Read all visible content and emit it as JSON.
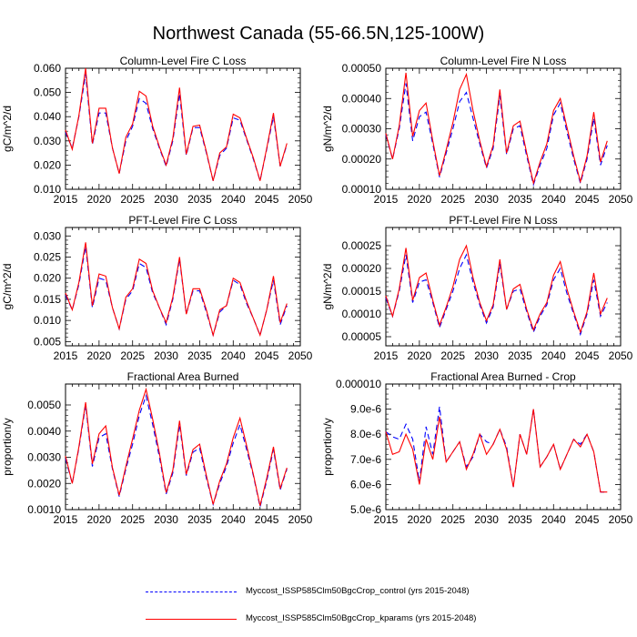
{
  "title": "Northwest Canada (55-66.5N,125-100W)",
  "colors": {
    "control": "#0000ff",
    "kparams": "#ff0000",
    "axis": "#000000"
  },
  "legend": [
    {
      "key": "control",
      "label": "Myccost_ISSP585Clm50BgcCrop_control (yrs 2015-2048)",
      "style": "dashed"
    },
    {
      "key": "kparams",
      "label": "Myccost_ISSP585Clm50BgcCrop_kparams (yrs 2015-2048)",
      "style": "solid"
    }
  ],
  "chart_data": [
    {
      "type": "line",
      "title": "Column-Level Fire C Loss",
      "ylabel": "gC/m^2/d",
      "xlim": [
        2015,
        2050
      ],
      "xticks": [
        "2015",
        "2020",
        "2025",
        "2030",
        "2035",
        "2040",
        "2045",
        "2050"
      ],
      "ylim": [
        0.01,
        0.06
      ],
      "yticks": [
        "0.010",
        "0.020",
        "0.030",
        "0.040",
        "0.050",
        "0.060"
      ],
      "x": [
        2015,
        2016,
        2017,
        2018,
        2019,
        2020,
        2021,
        2022,
        2023,
        2024,
        2025,
        2026,
        2027,
        2028,
        2029,
        2030,
        2031,
        2032,
        2033,
        2034,
        2035,
        2036,
        2037,
        2038,
        2039,
        2040,
        2041,
        2042,
        2043,
        2044,
        2045,
        2046,
        2047,
        2048
      ],
      "series": [
        {
          "name": "control",
          "values": [
            0.0335,
            0.027,
            0.04,
            0.0575,
            0.0285,
            0.0415,
            0.0415,
            0.027,
            0.0165,
            0.03,
            0.036,
            0.0475,
            0.0455,
            0.035,
            0.027,
            0.0195,
            0.03,
            0.0495,
            0.024,
            0.0355,
            0.0355,
            0.025,
            0.0135,
            0.024,
            0.027,
            0.0395,
            0.0385,
            0.0305,
            0.0225,
            0.0135,
            0.0265,
            0.04,
            0.0195,
            0.0285
          ]
        },
        {
          "name": "kparams",
          "values": [
            0.0345,
            0.0265,
            0.0405,
            0.06,
            0.029,
            0.0435,
            0.0435,
            0.027,
            0.0165,
            0.0315,
            0.037,
            0.0505,
            0.0485,
            0.036,
            0.0275,
            0.02,
            0.031,
            0.052,
            0.0245,
            0.036,
            0.0365,
            0.0255,
            0.0135,
            0.025,
            0.0275,
            0.041,
            0.0395,
            0.031,
            0.023,
            0.0135,
            0.027,
            0.0415,
            0.0195,
            0.029
          ]
        }
      ]
    },
    {
      "type": "line",
      "title": "Column-Level Fire N Loss",
      "ylabel": "gN/m^2/d",
      "xlim": [
        2015,
        2050
      ],
      "xticks": [
        "2015",
        "2020",
        "2025",
        "2030",
        "2035",
        "2040",
        "2045",
        "2050"
      ],
      "ylim": [
        0.0001,
        0.0005
      ],
      "yticks": [
        "0.00010",
        "0.00020",
        "0.00030",
        "0.00040",
        "0.00050"
      ],
      "x": [
        2015,
        2016,
        2017,
        2018,
        2019,
        2020,
        2021,
        2022,
        2023,
        2024,
        2025,
        2026,
        2027,
        2028,
        2029,
        2030,
        2031,
        2032,
        2033,
        2034,
        2035,
        2036,
        2037,
        2038,
        2039,
        2040,
        2041,
        2042,
        2043,
        2044,
        2045,
        2046,
        2047,
        2048
      ],
      "series": [
        {
          "name": "control",
          "values": [
            0.00028,
            0.0002,
            0.0003,
            0.00045,
            0.00026,
            0.00034,
            0.000355,
            0.00025,
            0.00014,
            0.00022,
            0.0003,
            0.00039,
            0.00042,
            0.000335,
            0.00025,
            0.00017,
            0.000235,
            0.00041,
            0.000215,
            0.0003,
            0.00031,
            0.00021,
            0.000115,
            0.00018,
            0.000235,
            0.000345,
            0.000385,
            0.00029,
            0.0002,
            0.00012,
            0.0002,
            0.000335,
            0.00018,
            0.000245
          ]
        },
        {
          "name": "kparams",
          "values": [
            0.000285,
            0.0002,
            0.00031,
            0.000485,
            0.000275,
            0.00036,
            0.000385,
            0.00026,
            0.000145,
            0.00023,
            0.00032,
            0.00043,
            0.00048,
            0.00036,
            0.00026,
            0.000175,
            0.000245,
            0.00043,
            0.00022,
            0.00031,
            0.000325,
            0.00022,
            0.00012,
            0.00019,
            0.00025,
            0.00036,
            0.0004,
            0.000305,
            0.00021,
            0.000125,
            0.00021,
            0.000355,
            0.00019,
            0.00026
          ]
        }
      ]
    },
    {
      "type": "line",
      "title": "PFT-Level Fire C Loss",
      "ylabel": "gC/m^2/d",
      "xlim": [
        2015,
        2050
      ],
      "xticks": [
        "2015",
        "2020",
        "2025",
        "2030",
        "2035",
        "2040",
        "2045",
        "2050"
      ],
      "ylim": [
        0.004,
        0.032
      ],
      "yticks": [
        "0.005",
        "0.010",
        "0.015",
        "0.020",
        "0.025",
        "0.030"
      ],
      "x": [
        2015,
        2016,
        2017,
        2018,
        2019,
        2020,
        2021,
        2022,
        2023,
        2024,
        2025,
        2026,
        2027,
        2028,
        2029,
        2030,
        2031,
        2032,
        2033,
        2034,
        2035,
        2036,
        2037,
        2038,
        2039,
        2040,
        2041,
        2042,
        2043,
        2044,
        2045,
        2046,
        2047,
        2048
      ],
      "series": [
        {
          "name": "control",
          "values": [
            0.016,
            0.0125,
            0.0185,
            0.0275,
            0.013,
            0.02,
            0.0195,
            0.013,
            0.008,
            0.015,
            0.017,
            0.0235,
            0.0225,
            0.0165,
            0.013,
            0.009,
            0.015,
            0.0245,
            0.0115,
            0.017,
            0.017,
            0.012,
            0.0065,
            0.012,
            0.0135,
            0.0195,
            0.0185,
            0.014,
            0.0105,
            0.0065,
            0.0125,
            0.0195,
            0.009,
            0.0135
          ]
        },
        {
          "name": "kparams",
          "values": [
            0.0165,
            0.0125,
            0.019,
            0.0285,
            0.0135,
            0.021,
            0.0205,
            0.013,
            0.008,
            0.0155,
            0.0175,
            0.0245,
            0.0235,
            0.017,
            0.013,
            0.0095,
            0.0155,
            0.025,
            0.0115,
            0.0175,
            0.0175,
            0.0125,
            0.0065,
            0.0125,
            0.0135,
            0.02,
            0.019,
            0.0145,
            0.0105,
            0.0065,
            0.0125,
            0.0205,
            0.0095,
            0.014
          ]
        }
      ]
    },
    {
      "type": "line",
      "title": "PFT-Level Fire N Loss",
      "ylabel": "gN/m^2/d",
      "xlim": [
        2015,
        2050
      ],
      "xticks": [
        "2015",
        "2020",
        "2025",
        "2030",
        "2035",
        "2040",
        "2045",
        "2050"
      ],
      "ylim": [
        3e-05,
        0.00029
      ],
      "yticks": [
        "0.00005",
        "0.00010",
        "0.00015",
        "0.00020",
        "0.00025"
      ],
      "x": [
        2015,
        2016,
        2017,
        2018,
        2019,
        2020,
        2021,
        2022,
        2023,
        2024,
        2025,
        2026,
        2027,
        2028,
        2029,
        2030,
        2031,
        2032,
        2033,
        2034,
        2035,
        2036,
        2037,
        2038,
        2039,
        2040,
        2041,
        2042,
        2043,
        2044,
        2045,
        2046,
        2047,
        2048
      ],
      "series": [
        {
          "name": "control",
          "values": [
            0.000135,
            9.5e-05,
            0.00015,
            0.00023,
            0.000125,
            0.00017,
            0.000175,
            0.000125,
            7e-05,
            0.00011,
            0.00015,
            0.0002,
            0.00023,
            0.00017,
            0.00012,
            8e-05,
            0.000115,
            0.00021,
            0.00011,
            0.00015,
            0.000155,
            0.000105,
            6e-05,
            9.5e-05,
            0.00012,
            0.000175,
            0.0002,
            0.000145,
            0.0001,
            5.5e-05,
            0.0001,
            0.000175,
            9.5e-05,
            0.000125
          ]
        },
        {
          "name": "kparams",
          "values": [
            0.00014,
            9.5e-05,
            0.000155,
            0.000245,
            0.00013,
            0.00018,
            0.00019,
            0.00013,
            7.5e-05,
            0.000115,
            0.00016,
            0.00022,
            0.00025,
            0.00018,
            0.000125,
            8.5e-05,
            0.00012,
            0.00022,
            0.00011,
            0.000155,
            0.000165,
            0.00011,
            6.5e-05,
            0.0001,
            0.000125,
            0.000185,
            0.000215,
            0.000155,
            0.000105,
            6e-05,
            0.000105,
            0.00019,
            0.0001,
            0.000135
          ]
        }
      ]
    },
    {
      "type": "line",
      "title": "Fractional Area Burned",
      "ylabel": "proportion/y",
      "xlim": [
        2015,
        2050
      ],
      "xticks": [
        "2015",
        "2020",
        "2025",
        "2030",
        "2035",
        "2040",
        "2045",
        "2050"
      ],
      "ylim": [
        0.001,
        0.0058
      ],
      "yticks": [
        "0.0010",
        "0.0020",
        "0.0030",
        "0.0040",
        "0.0050"
      ],
      "x": [
        2015,
        2016,
        2017,
        2018,
        2019,
        2020,
        2021,
        2022,
        2023,
        2024,
        2025,
        2026,
        2027,
        2028,
        2029,
        2030,
        2031,
        2032,
        2033,
        2034,
        2035,
        2036,
        2037,
        2038,
        2039,
        2040,
        2041,
        2042,
        2043,
        2044,
        2045,
        2046,
        2047,
        2048
      ],
      "series": [
        {
          "name": "control",
          "values": [
            0.00295,
            0.002,
            0.00335,
            0.005,
            0.00265,
            0.00375,
            0.0039,
            0.00255,
            0.0015,
            0.00255,
            0.0035,
            0.0046,
            0.00535,
            0.00425,
            0.003,
            0.0016,
            0.0024,
            0.00425,
            0.0023,
            0.0032,
            0.00335,
            0.0022,
            0.0012,
            0.002,
            0.00265,
            0.00355,
            0.00425,
            0.0033,
            0.0023,
            0.0011,
            0.0021,
            0.0033,
            0.00175,
            0.00255
          ]
        },
        {
          "name": "kparams",
          "values": [
            0.00305,
            0.002,
            0.0034,
            0.0051,
            0.00275,
            0.0039,
            0.0042,
            0.0026,
            0.00155,
            0.00265,
            0.0037,
            0.0048,
            0.0056,
            0.00445,
            0.00315,
            0.00165,
            0.0025,
            0.0044,
            0.00235,
            0.0033,
            0.0035,
            0.0023,
            0.0012,
            0.0021,
            0.00275,
            0.00375,
            0.0045,
            0.00345,
            0.00235,
            0.00115,
            0.0022,
            0.0034,
            0.0018,
            0.0026
          ]
        }
      ]
    },
    {
      "type": "line",
      "title": "Fractional Area Burned - Crop",
      "ylabel": "proportion/y",
      "xlim": [
        2015,
        2050
      ],
      "xticks": [
        "2015",
        "2020",
        "2025",
        "2030",
        "2035",
        "2040",
        "2045",
        "2050"
      ],
      "ylim": [
        5e-06,
        1e-05
      ],
      "yticks": [
        "5.0e-6",
        "6.0e-6",
        "7.0e-6",
        "8.0e-6",
        "9.0e-6",
        "0.000010"
      ],
      "x": [
        2015,
        2016,
        2017,
        2018,
        2019,
        2020,
        2021,
        2022,
        2023,
        2024,
        2025,
        2026,
        2027,
        2028,
        2029,
        2030,
        2031,
        2032,
        2033,
        2034,
        2035,
        2036,
        2037,
        2038,
        2039,
        2040,
        2041,
        2042,
        2043,
        2044,
        2045,
        2046,
        2047,
        2048
      ],
      "series": [
        {
          "name": "control",
          "values": [
            8.1e-06,
            7.9e-06,
            7.8e-06,
            8.4e-06,
            7.8e-06,
            6.1e-06,
            8.3e-06,
            7.2e-06,
            9.1e-06,
            6.9e-06,
            7.3e-06,
            7.7e-06,
            6.7e-06,
            7.1e-06,
            8e-06,
            7.7e-06,
            7.6e-06,
            8.2e-06,
            7.5e-06,
            5.9e-06,
            8e-06,
            7.2e-06,
            9e-06,
            6.7e-06,
            7.1e-06,
            7.6e-06,
            6.6e-06,
            7.2e-06,
            7.8e-06,
            7.6e-06,
            8e-06,
            7.3e-06,
            5.7e-06,
            5.7e-06
          ]
        },
        {
          "name": "kparams",
          "values": [
            8.1e-06,
            7.2e-06,
            7.3e-06,
            8e-06,
            7.4e-06,
            6e-06,
            7.8e-06,
            7e-06,
            8.7e-06,
            6.9e-06,
            7.3e-06,
            7.7e-06,
            6.6e-06,
            7.2e-06,
            8e-06,
            7.2e-06,
            7.6e-06,
            8.2e-06,
            7.4e-06,
            5.9e-06,
            8e-06,
            7.2e-06,
            9e-06,
            6.7e-06,
            7.1e-06,
            7.6e-06,
            6.6e-06,
            7.2e-06,
            7.8e-06,
            7.5e-06,
            8e-06,
            7.3e-06,
            5.7e-06,
            5.7e-06
          ]
        }
      ]
    }
  ]
}
